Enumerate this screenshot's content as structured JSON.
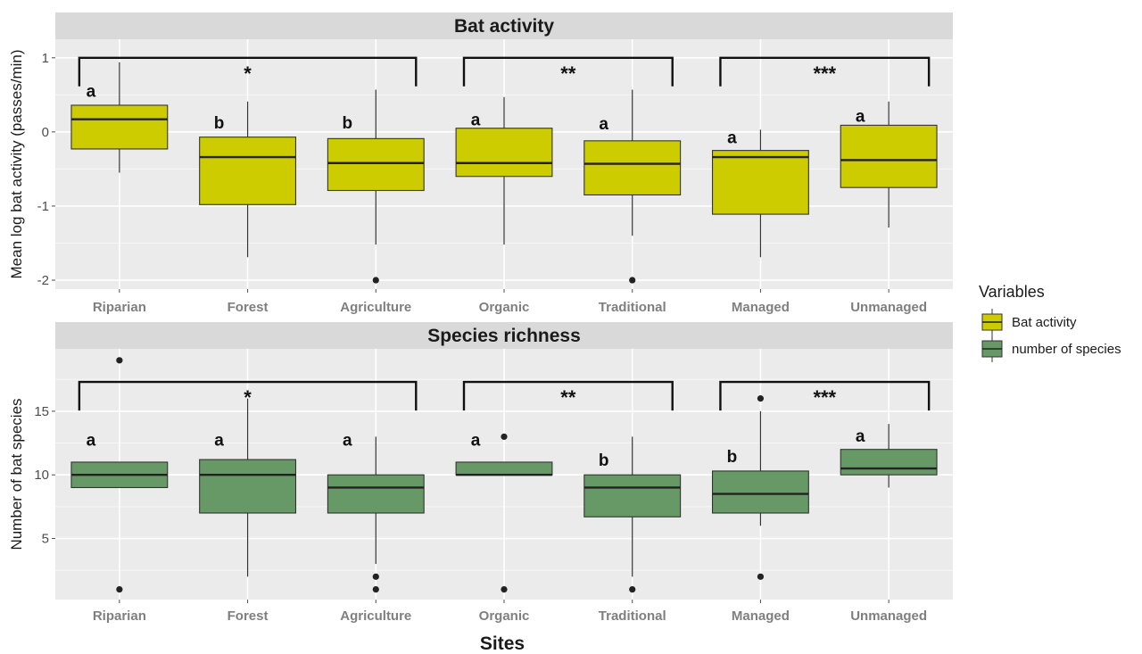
{
  "chart_data": {
    "type": "box",
    "xlabel": "Sites",
    "categories": [
      "Riparian",
      "Forest",
      "Agriculture",
      "Organic",
      "Traditional",
      "Managed",
      "Unmanaged"
    ],
    "legend": {
      "title": "Variables",
      "position": "right",
      "entries": [
        {
          "label": "Bat activity",
          "color": "#cccc00"
        },
        {
          "label": "number of species",
          "color": "#669966"
        }
      ]
    },
    "panels": [
      {
        "title": "Bat activity",
        "ylabel": "Mean log bat activity (passes/min)",
        "ylim": [
          -2.12,
          1.25
        ],
        "yticks": [
          1,
          0,
          -1,
          -2
        ],
        "ytick_labels": [
          "1",
          "0",
          "-1",
          "-2"
        ],
        "color": "#cccc00",
        "boxes": [
          {
            "q1": -0.23,
            "median": 0.17,
            "q3": 0.36,
            "whisker_low": -0.55,
            "whisker_high": 0.94,
            "outliers": []
          },
          {
            "q1": -0.98,
            "median": -0.34,
            "q3": -0.07,
            "whisker_low": -1.69,
            "whisker_high": 0.41,
            "outliers": []
          },
          {
            "q1": -0.79,
            "median": -0.42,
            "q3": -0.09,
            "whisker_low": -1.52,
            "whisker_high": 0.57,
            "outliers": [
              -2.0
            ]
          },
          {
            "q1": -0.6,
            "median": -0.42,
            "q3": 0.05,
            "whisker_low": -1.52,
            "whisker_high": 0.47,
            "outliers": []
          },
          {
            "q1": -0.85,
            "median": -0.43,
            "q3": -0.12,
            "whisker_low": -1.4,
            "whisker_high": 0.57,
            "outliers": [
              -2.0
            ]
          },
          {
            "q1": -1.11,
            "median": -0.34,
            "q3": -0.25,
            "whisker_low": -1.69,
            "whisker_high": 0.03,
            "outliers": []
          },
          {
            "q1": -0.75,
            "median": -0.38,
            "q3": 0.09,
            "whisker_low": -1.29,
            "whisker_high": 0.41,
            "outliers": []
          }
        ],
        "letters": [
          "a",
          "b",
          "b",
          "a",
          "a",
          "a",
          "a"
        ],
        "letter_values": [
          0.56,
          0.13,
          0.13,
          0.17,
          0.12,
          -0.07,
          0.22
        ],
        "brackets": [
          {
            "from": 0,
            "to": 2,
            "label": "*"
          },
          {
            "from": 3,
            "to": 4,
            "label": "**"
          },
          {
            "from": 5,
            "to": 6,
            "label": "***"
          }
        ],
        "bracket_level": 1.0
      },
      {
        "title": "Species richness",
        "ylabel": "Number of bat species",
        "ylim": [
          0.2,
          19.9
        ],
        "yticks": [
          5,
          10,
          15
        ],
        "ytick_labels": [
          "5",
          "10",
          "15"
        ],
        "color": "#669966",
        "boxes": [
          {
            "q1": 9,
            "median": 10,
            "q3": 11,
            "whisker_low": 9,
            "whisker_high": 11,
            "outliers": [
              19,
              1
            ]
          },
          {
            "q1": 7,
            "median": 10,
            "q3": 11.2,
            "whisker_low": 2,
            "whisker_high": 16,
            "outliers": []
          },
          {
            "q1": 7,
            "median": 9,
            "q3": 10,
            "whisker_low": 3,
            "whisker_high": 13,
            "outliers": [
              2,
              1
            ]
          },
          {
            "q1": 10,
            "median": 10,
            "q3": 11,
            "whisker_low": 10,
            "whisker_high": 11,
            "outliers": [
              13,
              1
            ]
          },
          {
            "q1": 6.7,
            "median": 9,
            "q3": 10,
            "whisker_low": 2,
            "whisker_high": 13,
            "outliers": [
              1
            ]
          },
          {
            "q1": 7,
            "median": 8.5,
            "q3": 10.3,
            "whisker_low": 6,
            "whisker_high": 15,
            "outliers": [
              16,
              2
            ]
          },
          {
            "q1": 10,
            "median": 10.5,
            "q3": 12,
            "whisker_low": 9,
            "whisker_high": 14,
            "outliers": []
          }
        ],
        "letters": [
          "a",
          "a",
          "a",
          "a",
          "b",
          "b",
          "a"
        ],
        "letter_values": [
          12.8,
          12.8,
          12.8,
          12.8,
          11.2,
          11.5,
          13.1
        ],
        "brackets": [
          {
            "from": 0,
            "to": 2,
            "label": "*"
          },
          {
            "from": 3,
            "to": 4,
            "label": "**"
          },
          {
            "from": 5,
            "to": 6,
            "label": "***"
          }
        ],
        "bracket_level": 17.3
      }
    ]
  }
}
